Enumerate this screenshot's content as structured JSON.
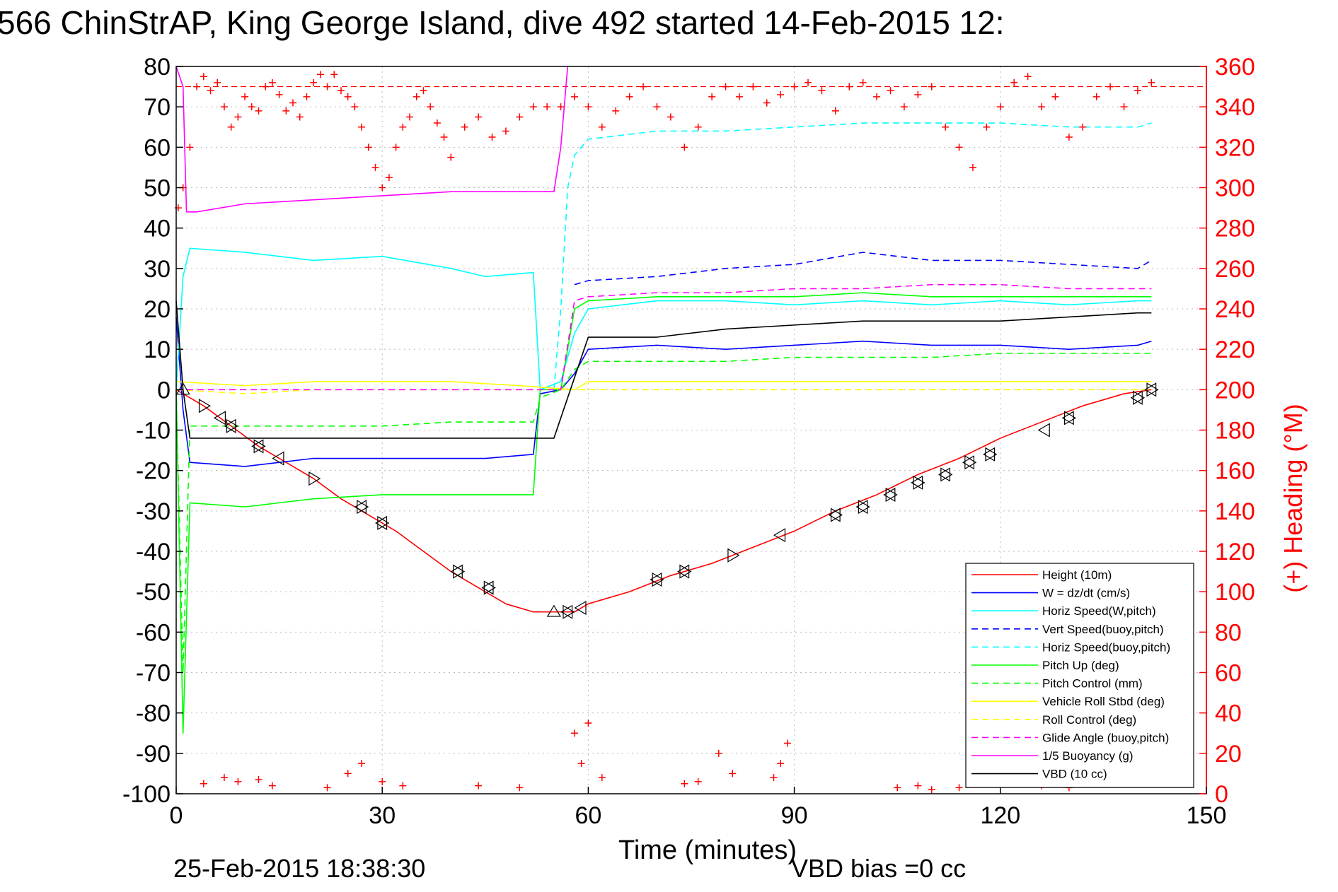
{
  "chart_data": {
    "type": "line",
    "title": "566 ChinStrAP, King George Island, dive 492 started 14-Feb-2015 12:",
    "xlabel": "Time (minutes)",
    "ylabel_right": "(+) Heading (°M)",
    "xlim": [
      0,
      150
    ],
    "ylim": [
      -100,
      80
    ],
    "ylim_right": [
      0,
      360
    ],
    "x_ticks": [
      "0",
      "30",
      "60",
      "90",
      "120",
      "150"
    ],
    "y_ticks": [
      "80",
      "70",
      "60",
      "50",
      "40",
      "30",
      "20",
      "10",
      "0",
      "-10",
      "-20",
      "-30",
      "-40",
      "-50",
      "-60",
      "-70",
      "-80",
      "-90",
      "-100"
    ],
    "y_right_ticks": [
      "360",
      "340",
      "320",
      "300",
      "280",
      "260",
      "240",
      "220",
      "200",
      "180",
      "160",
      "140",
      "120",
      "100",
      "80",
      "60",
      "40",
      "20",
      "0"
    ],
    "grid": true,
    "legend_position": "lower-right",
    "footer_left": "25-Feb-2015 18:38:30",
    "footer_center": "VBD bias =0 cc",
    "colors": {
      "height": "#ff0000",
      "w": "#0000ff",
      "horiz_w": "#00ffff",
      "vert_buoy": "#0000ff",
      "horiz_buoy": "#00ffff",
      "pitch_up": "#00ff00",
      "pitch_control": "#00ff00",
      "roll": "#ffff00",
      "roll_control": "#ffff00",
      "glide": "#ff00ff",
      "buoyancy": "#ff00ff",
      "vbd": "#000000",
      "heading": "#ff0000"
    },
    "series": [
      {
        "name": "Height (10m)",
        "style": "solid",
        "color": "#ff0000",
        "x": [
          0,
          1,
          4,
          8,
          12,
          16,
          20,
          24,
          28,
          32,
          36,
          40,
          44,
          48,
          52,
          56,
          58,
          60,
          66,
          72,
          78,
          84,
          90,
          96,
          102,
          108,
          114,
          120,
          126,
          132,
          138,
          142
        ],
        "y": [
          0,
          -1,
          -4,
          -9,
          -14,
          -18,
          -22,
          -27,
          -31,
          -35,
          -40,
          -45,
          -49,
          -53,
          -55,
          -55,
          -55,
          -53,
          -50,
          -46,
          -43,
          -39,
          -35,
          -30,
          -26,
          -21,
          -17,
          -12,
          -8,
          -4,
          -1,
          0
        ]
      },
      {
        "name": "W = dz/dt (cm/s)",
        "style": "solid",
        "color": "#0000ff",
        "x": [
          0,
          1,
          2,
          10,
          20,
          30,
          40,
          45,
          52,
          53,
          56,
          58,
          60,
          70,
          80,
          90,
          100,
          110,
          120,
          130,
          140,
          142
        ],
        "y": [
          18,
          -5,
          -18,
          -19,
          -17,
          -17,
          -17,
          -17,
          -16,
          -1,
          0,
          4,
          10,
          11,
          10,
          11,
          12,
          11,
          11,
          10,
          11,
          12
        ]
      },
      {
        "name": "Horiz Speed(W,pitch)",
        "style": "solid",
        "color": "#00ffff",
        "x": [
          0,
          1,
          2,
          10,
          20,
          30,
          40,
          45,
          52,
          53,
          56,
          58,
          60,
          70,
          80,
          90,
          100,
          110,
          120,
          130,
          140,
          142
        ],
        "y": [
          0,
          28,
          35,
          34,
          32,
          33,
          30,
          28,
          29,
          0,
          2,
          14,
          20,
          22,
          22,
          21,
          22,
          21,
          22,
          21,
          22,
          22
        ]
      },
      {
        "name": "Vert Speed(buoy,pitch)",
        "style": "dashed",
        "color": "#0000ff",
        "x": [
          58,
          60,
          70,
          80,
          90,
          100,
          110,
          120,
          130,
          140,
          142
        ],
        "y": [
          26,
          27,
          28,
          30,
          31,
          34,
          32,
          32,
          31,
          30,
          32
        ]
      },
      {
        "name": "Horiz Speed(buoy,pitch)",
        "style": "dashed",
        "color": "#00ffff",
        "x": [
          55,
          56,
          57,
          58,
          60,
          70,
          80,
          90,
          100,
          110,
          120,
          130,
          140,
          142
        ],
        "y": [
          0,
          20,
          50,
          58,
          62,
          64,
          64,
          65,
          66,
          66,
          66,
          65,
          65,
          66
        ]
      },
      {
        "name": "Pitch Up (deg)",
        "style": "solid",
        "color": "#00ff00",
        "x": [
          0,
          1,
          2,
          10,
          20,
          30,
          40,
          45,
          52,
          53,
          56,
          58,
          60,
          70,
          80,
          90,
          100,
          110,
          120,
          130,
          140,
          142
        ],
        "y": [
          0,
          -85,
          -28,
          -29,
          -27,
          -26,
          -26,
          -26,
          -26,
          0,
          0,
          20,
          22,
          23,
          23,
          23,
          24,
          23,
          23,
          23,
          23,
          23
        ]
      },
      {
        "name": "Pitch Control (mm)",
        "style": "dashed",
        "color": "#00ff00",
        "x": [
          0,
          1,
          2,
          10,
          20,
          30,
          40,
          45,
          52,
          53,
          56,
          58,
          60,
          70,
          80,
          90,
          100,
          110,
          120,
          130,
          140,
          142
        ],
        "y": [
          0,
          -70,
          -9,
          -9,
          -9,
          -9,
          -8,
          -8,
          -8,
          -2,
          0,
          5,
          7,
          7,
          7,
          8,
          8,
          8,
          9,
          9,
          9,
          9
        ]
      },
      {
        "name": "Vehicle Roll Stbd (deg)",
        "style": "solid",
        "color": "#ffff00",
        "x": [
          0,
          10,
          20,
          30,
          40,
          50,
          58,
          60,
          70,
          80,
          90,
          100,
          110,
          120,
          130,
          140,
          142
        ],
        "y": [
          2,
          1,
          2,
          2,
          2,
          1,
          0,
          2,
          2,
          2,
          2,
          2,
          2,
          2,
          2,
          2,
          2
        ]
      },
      {
        "name": "Roll Control (deg)",
        "style": "dashed",
        "color": "#ffff00",
        "x": [
          0,
          10,
          20,
          30,
          40,
          50,
          58,
          60,
          70,
          80,
          90,
          100,
          110,
          120,
          130,
          140,
          142
        ],
        "y": [
          0,
          -1,
          0,
          0,
          0,
          0,
          0,
          0,
          0,
          0,
          0,
          0,
          0,
          0,
          0,
          0,
          0
        ]
      },
      {
        "name": "Glide Angle (buoy,pitch)",
        "style": "dashed",
        "color": "#ff00ff",
        "x": [
          0,
          10,
          20,
          30,
          40,
          50,
          56,
          58,
          60,
          70,
          80,
          90,
          100,
          110,
          120,
          130,
          140,
          142
        ],
        "y": [
          0,
          0,
          0,
          0,
          0,
          0,
          0,
          22,
          23,
          24,
          24,
          25,
          25,
          26,
          26,
          25,
          25,
          25
        ]
      },
      {
        "name": "1/5 Buoyancy (g)",
        "style": "solid",
        "color": "#ff00ff",
        "x": [
          0,
          1,
          1.5,
          3,
          10,
          20,
          30,
          40,
          50,
          55,
          56,
          57
        ],
        "y": [
          80,
          75,
          44,
          44,
          46,
          47,
          48,
          49,
          49,
          49,
          60,
          80
        ]
      },
      {
        "name": "VBD (10 cc)",
        "style": "solid",
        "color": "#000000",
        "x": [
          0,
          1,
          2,
          10,
          20,
          30,
          40,
          50,
          54,
          55,
          58,
          60,
          70,
          80,
          90,
          100,
          110,
          120,
          130,
          140,
          142
        ],
        "y": [
          22,
          0,
          -12,
          -12,
          -12,
          -12,
          -12,
          -12,
          -12,
          -12,
          3,
          13,
          13,
          15,
          16,
          17,
          17,
          17,
          18,
          19,
          19
        ]
      }
    ],
    "heading_points": {
      "name": "(+) Heading (°M)",
      "marker": "+",
      "color": "#ff0000",
      "axis": "right",
      "x": [
        0.3,
        1,
        2,
        3,
        4,
        5,
        6,
        7,
        8,
        9,
        10,
        11,
        12,
        13,
        14,
        15,
        16,
        17,
        18,
        19,
        20,
        21,
        22,
        23,
        24,
        25,
        26,
        27,
        28,
        29,
        30,
        31,
        32,
        33,
        34,
        35,
        36,
        37,
        38,
        39,
        40,
        42,
        44,
        46,
        48,
        50,
        52,
        54,
        56,
        58,
        60,
        62,
        64,
        66,
        68,
        70,
        72,
        74,
        76,
        78,
        80,
        82,
        84,
        86,
        88,
        90,
        92,
        94,
        96,
        98,
        100,
        102,
        104,
        106,
        108,
        110,
        112,
        114,
        116,
        118,
        120,
        122,
        124,
        126,
        128,
        130,
        132,
        134,
        136,
        138,
        140,
        142,
        4,
        7,
        9,
        12,
        14,
        22,
        25,
        27,
        30,
        33,
        44,
        50,
        58,
        59,
        60,
        62,
        74,
        76,
        79,
        81,
        87,
        88,
        89,
        105,
        108,
        110,
        114,
        126,
        130
      ],
      "y": [
        290,
        300,
        320,
        350,
        355,
        348,
        352,
        340,
        330,
        335,
        345,
        340,
        338,
        350,
        352,
        346,
        338,
        342,
        335,
        345,
        352,
        356,
        350,
        356,
        348,
        345,
        340,
        330,
        320,
        310,
        300,
        305,
        320,
        330,
        335,
        345,
        348,
        340,
        332,
        325,
        315,
        330,
        335,
        325,
        328,
        335,
        340,
        340,
        340,
        345,
        340,
        330,
        338,
        345,
        350,
        340,
        335,
        320,
        330,
        345,
        350,
        345,
        350,
        342,
        346,
        350,
        352,
        348,
        338,
        350,
        352,
        345,
        348,
        340,
        346,
        350,
        330,
        320,
        310,
        330,
        340,
        352,
        355,
        340,
        345,
        325,
        330,
        345,
        350,
        340,
        348,
        352,
        5,
        8,
        6,
        7,
        4,
        3,
        10,
        15,
        6,
        4,
        4,
        3,
        30,
        15,
        35,
        8,
        5,
        6,
        20,
        10,
        8,
        15,
        25,
        3,
        4,
        2,
        3,
        4,
        3
      ]
    },
    "depth_markers": [
      {
        "x": 1,
        "y": 0,
        "shape": "up"
      },
      {
        "x": 4,
        "y": -4,
        "shape": "right"
      },
      {
        "x": 6.5,
        "y": -7,
        "shape": "left"
      },
      {
        "x": 8,
        "y": -9,
        "shape": "both"
      },
      {
        "x": 12,
        "y": -14,
        "shape": "both"
      },
      {
        "x": 15,
        "y": -17,
        "shape": "left"
      },
      {
        "x": 20,
        "y": -22,
        "shape": "right"
      },
      {
        "x": 27,
        "y": -29,
        "shape": "both"
      },
      {
        "x": 30,
        "y": -33,
        "shape": "both"
      },
      {
        "x": 41,
        "y": -45,
        "shape": "both"
      },
      {
        "x": 45.5,
        "y": -49,
        "shape": "both"
      },
      {
        "x": 55,
        "y": -55,
        "shape": "up"
      },
      {
        "x": 57,
        "y": -55,
        "shape": "both"
      },
      {
        "x": 59,
        "y": -54,
        "shape": "left"
      },
      {
        "x": 70,
        "y": -47,
        "shape": "both"
      },
      {
        "x": 74,
        "y": -45,
        "shape": "both"
      },
      {
        "x": 81,
        "y": -41,
        "shape": "right"
      },
      {
        "x": 88,
        "y": -36,
        "shape": "left"
      },
      {
        "x": 96,
        "y": -31,
        "shape": "both"
      },
      {
        "x": 100,
        "y": -29,
        "shape": "both"
      },
      {
        "x": 104,
        "y": -26,
        "shape": "both"
      },
      {
        "x": 108,
        "y": -23,
        "shape": "both"
      },
      {
        "x": 112,
        "y": -21,
        "shape": "both"
      },
      {
        "x": 115.5,
        "y": -18,
        "shape": "both"
      },
      {
        "x": 118.5,
        "y": -16,
        "shape": "both"
      },
      {
        "x": 126.5,
        "y": -10,
        "shape": "left"
      },
      {
        "x": 130,
        "y": -7,
        "shape": "both"
      },
      {
        "x": 140,
        "y": -2,
        "shape": "both"
      },
      {
        "x": 142,
        "y": 0,
        "shape": "both"
      }
    ],
    "reference_line": {
      "y_right": 350,
      "style": "dashed",
      "color": "#ff0000"
    }
  }
}
